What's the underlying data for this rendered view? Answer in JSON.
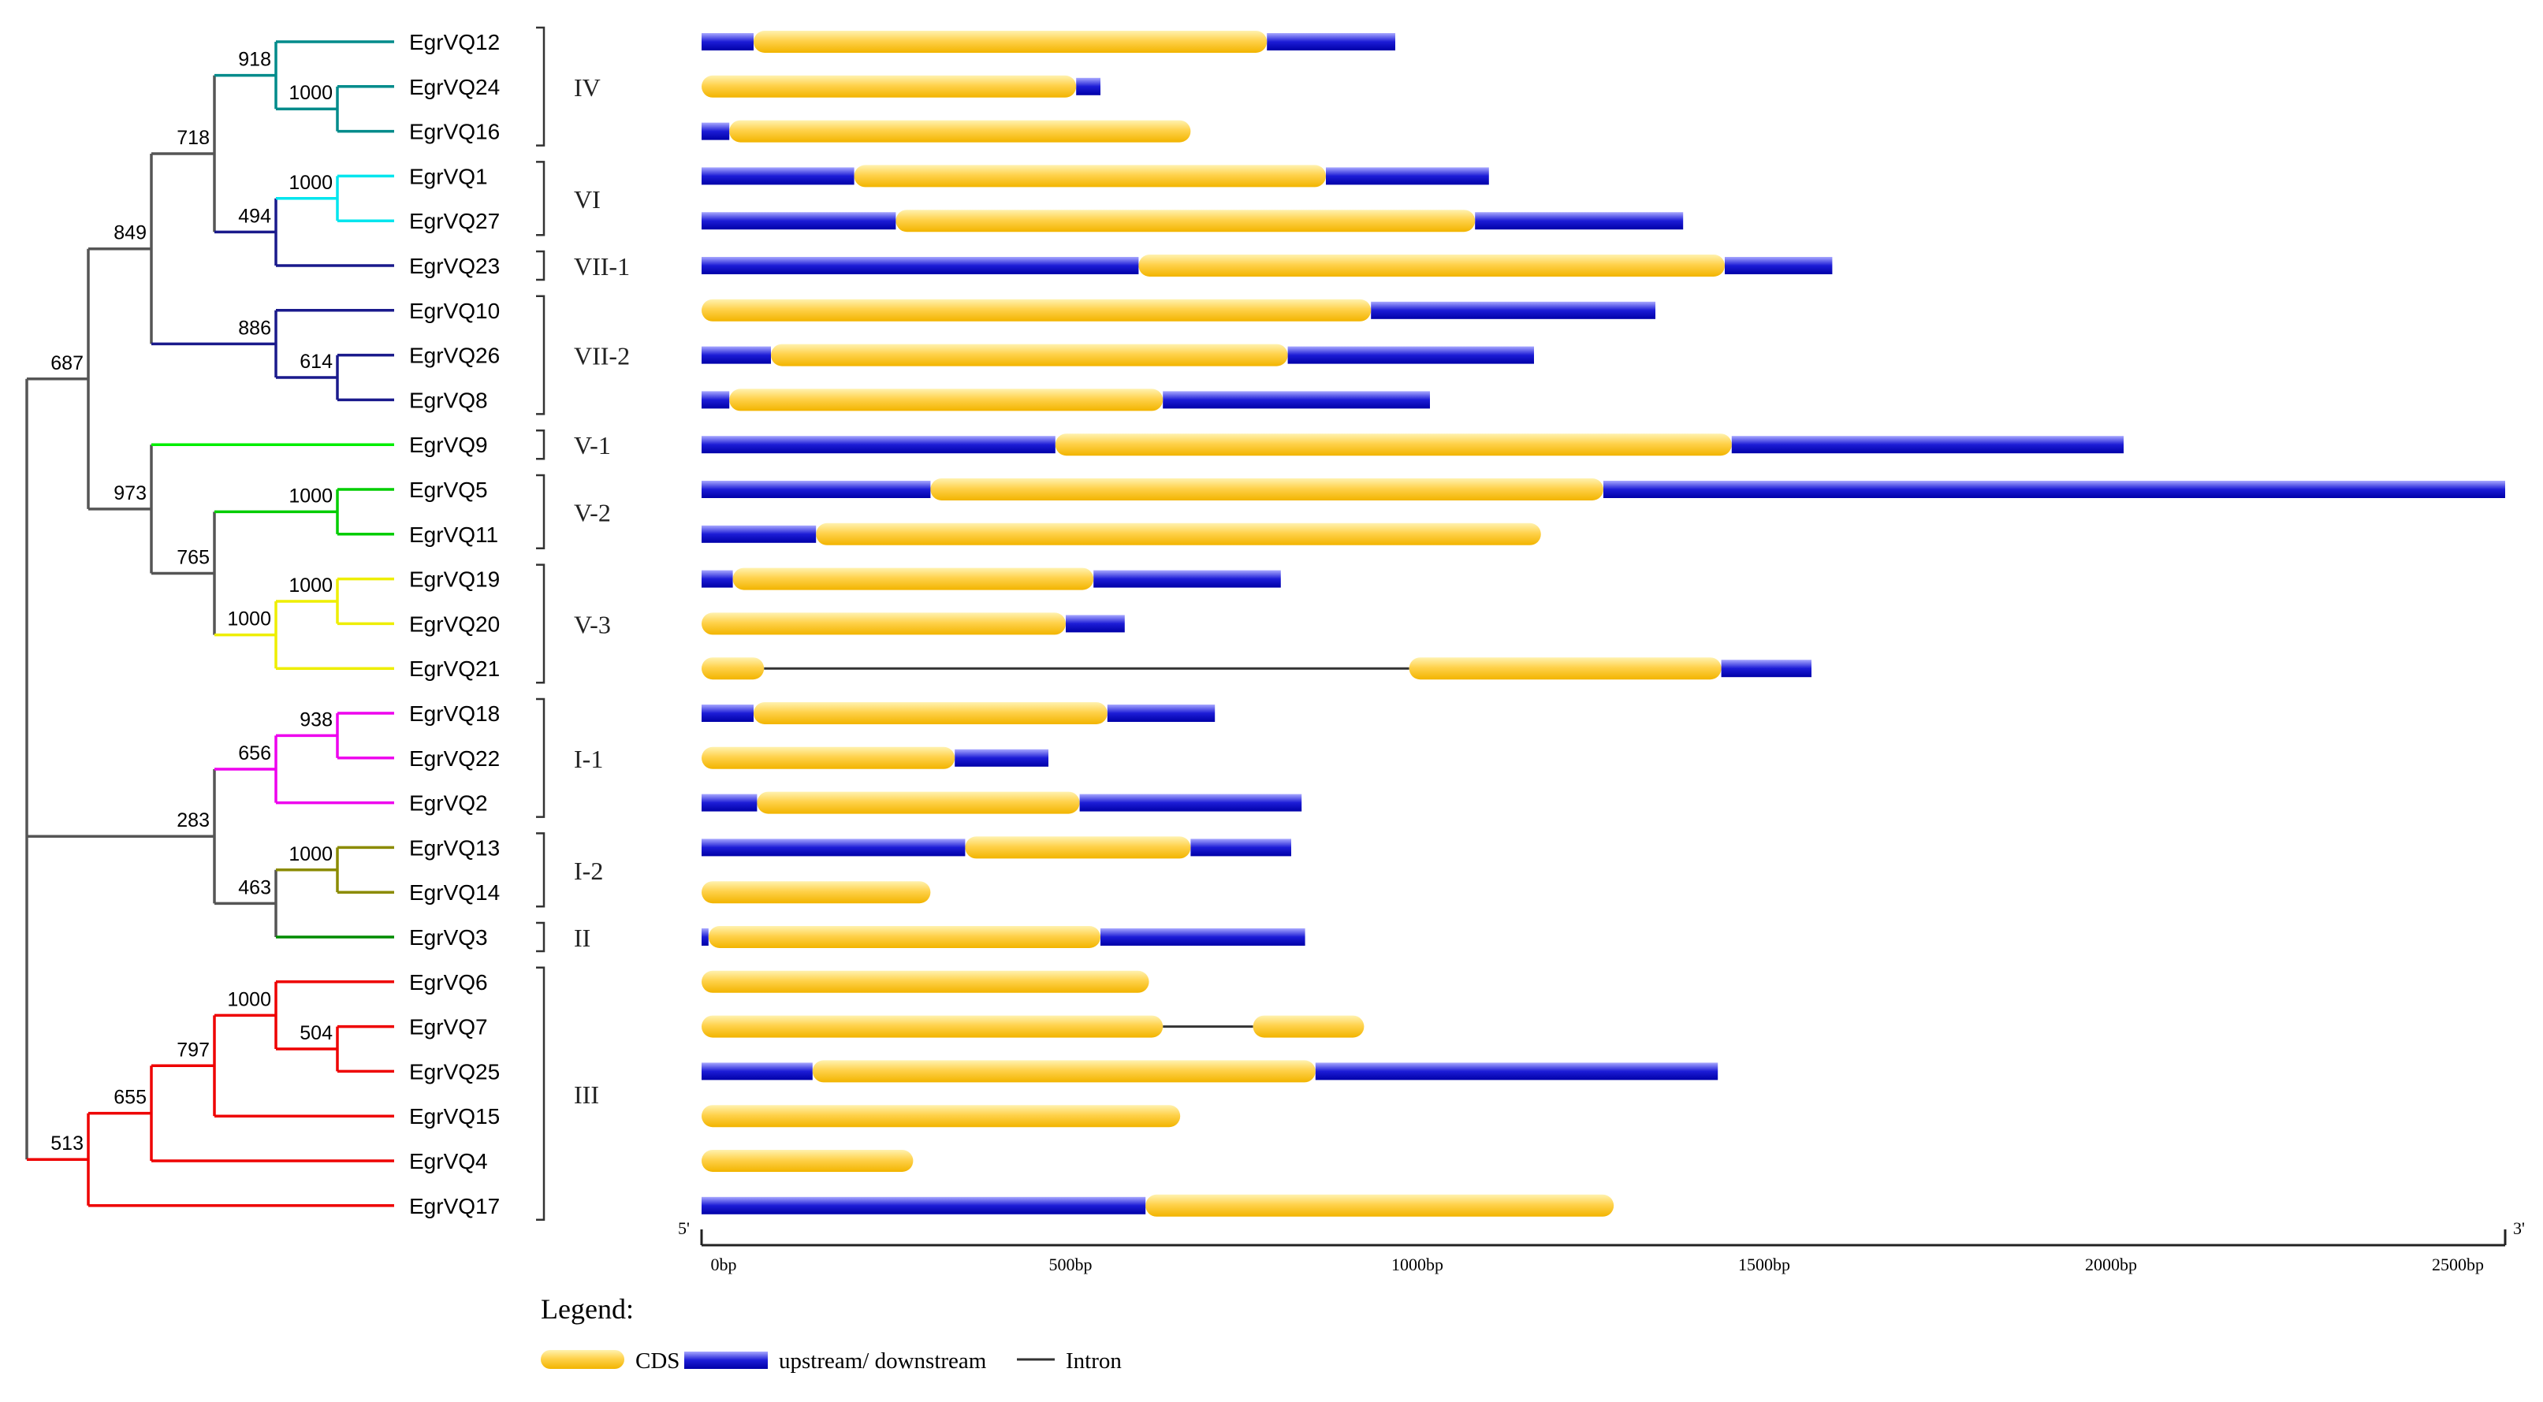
{
  "colors": {
    "cds_light": "#fff2b0",
    "cds_mid": "#ffd24d",
    "cds_dark": "#f2b400",
    "utr_light": "#a8a8ff",
    "utr_mid": "#1c1cd6",
    "utr_dark": "#0000a8",
    "intron": "#333333",
    "axis": "#222222",
    "bracket": "#333333",
    "clade_IV": "#008b8b",
    "clade_VI": "#00e5ee",
    "clade_VII": "#1a1a8c",
    "clade_V1": "#00ee00",
    "clade_V2": "#00cd00",
    "clade_V3": "#eeee00",
    "clade_I1": "#ee00ee",
    "clade_I2": "#8b8b00",
    "clade_II": "#008b00",
    "clade_III": "#ee0000",
    "backbone": "#555555"
  },
  "genes": [
    {
      "name": "EgrVQ12",
      "segments": [
        {
          "t": "utr",
          "s": 0,
          "e": 75
        },
        {
          "t": "cds",
          "s": 75,
          "e": 815
        },
        {
          "t": "utr",
          "s": 815,
          "e": 1000
        }
      ]
    },
    {
      "name": "EgrVQ24",
      "segments": [
        {
          "t": "cds",
          "s": 0,
          "e": 540
        },
        {
          "t": "utr",
          "s": 540,
          "e": 575
        }
      ]
    },
    {
      "name": "EgrVQ16",
      "segments": [
        {
          "t": "utr",
          "s": 0,
          "e": 40
        },
        {
          "t": "cds",
          "s": 40,
          "e": 705
        }
      ]
    },
    {
      "name": "EgrVQ1",
      "segments": [
        {
          "t": "utr",
          "s": 0,
          "e": 220
        },
        {
          "t": "cds",
          "s": 220,
          "e": 900
        },
        {
          "t": "utr",
          "s": 900,
          "e": 1135
        }
      ]
    },
    {
      "name": "EgrVQ27",
      "segments": [
        {
          "t": "utr",
          "s": 0,
          "e": 280
        },
        {
          "t": "cds",
          "s": 280,
          "e": 1115
        },
        {
          "t": "utr",
          "s": 1115,
          "e": 1415
        }
      ]
    },
    {
      "name": "EgrVQ23",
      "segments": [
        {
          "t": "utr",
          "s": 0,
          "e": 630
        },
        {
          "t": "cds",
          "s": 630,
          "e": 1475
        },
        {
          "t": "utr",
          "s": 1475,
          "e": 1630
        }
      ]
    },
    {
      "name": "EgrVQ10",
      "segments": [
        {
          "t": "cds",
          "s": 0,
          "e": 965
        },
        {
          "t": "utr",
          "s": 965,
          "e": 1375
        }
      ]
    },
    {
      "name": "EgrVQ26",
      "segments": [
        {
          "t": "utr",
          "s": 0,
          "e": 100
        },
        {
          "t": "cds",
          "s": 100,
          "e": 845
        },
        {
          "t": "utr",
          "s": 845,
          "e": 1200
        }
      ]
    },
    {
      "name": "EgrVQ8",
      "segments": [
        {
          "t": "utr",
          "s": 0,
          "e": 40
        },
        {
          "t": "cds",
          "s": 40,
          "e": 665
        },
        {
          "t": "utr",
          "s": 665,
          "e": 1050
        }
      ]
    },
    {
      "name": "EgrVQ9",
      "segments": [
        {
          "t": "utr",
          "s": 0,
          "e": 510
        },
        {
          "t": "cds",
          "s": 510,
          "e": 1485
        },
        {
          "t": "utr",
          "s": 1485,
          "e": 2050
        }
      ]
    },
    {
      "name": "EgrVQ5",
      "segments": [
        {
          "t": "utr",
          "s": 0,
          "e": 330
        },
        {
          "t": "cds",
          "s": 330,
          "e": 1300
        },
        {
          "t": "utr",
          "s": 1300,
          "e": 2600
        }
      ]
    },
    {
      "name": "EgrVQ11",
      "segments": [
        {
          "t": "utr",
          "s": 0,
          "e": 165
        },
        {
          "t": "cds",
          "s": 165,
          "e": 1210
        }
      ]
    },
    {
      "name": "EgrVQ19",
      "segments": [
        {
          "t": "utr",
          "s": 0,
          "e": 45
        },
        {
          "t": "cds",
          "s": 45,
          "e": 565
        },
        {
          "t": "utr",
          "s": 565,
          "e": 835
        }
      ]
    },
    {
      "name": "EgrVQ20",
      "segments": [
        {
          "t": "cds",
          "s": 0,
          "e": 525
        },
        {
          "t": "utr",
          "s": 525,
          "e": 610
        }
      ]
    },
    {
      "name": "EgrVQ21",
      "segments": [
        {
          "t": "cds",
          "s": 0,
          "e": 90
        },
        {
          "t": "intron",
          "s": 90,
          "e": 1020
        },
        {
          "t": "cds",
          "s": 1020,
          "e": 1470
        },
        {
          "t": "utr",
          "s": 1470,
          "e": 1600
        }
      ]
    },
    {
      "name": "EgrVQ18",
      "segments": [
        {
          "t": "utr",
          "s": 0,
          "e": 75
        },
        {
          "t": "cds",
          "s": 75,
          "e": 585
        },
        {
          "t": "utr",
          "s": 585,
          "e": 740
        }
      ]
    },
    {
      "name": "EgrVQ22",
      "segments": [
        {
          "t": "cds",
          "s": 0,
          "e": 365
        },
        {
          "t": "utr",
          "s": 365,
          "e": 500
        }
      ]
    },
    {
      "name": "EgrVQ2",
      "segments": [
        {
          "t": "utr",
          "s": 0,
          "e": 80
        },
        {
          "t": "cds",
          "s": 80,
          "e": 545
        },
        {
          "t": "utr",
          "s": 545,
          "e": 865
        }
      ]
    },
    {
      "name": "EgrVQ13",
      "segments": [
        {
          "t": "utr",
          "s": 0,
          "e": 380
        },
        {
          "t": "cds",
          "s": 380,
          "e": 705
        },
        {
          "t": "utr",
          "s": 705,
          "e": 850
        }
      ]
    },
    {
      "name": "EgrVQ14",
      "segments": [
        {
          "t": "cds",
          "s": 0,
          "e": 330
        }
      ]
    },
    {
      "name": "EgrVQ3",
      "segments": [
        {
          "t": "utr",
          "s": 0,
          "e": 10
        },
        {
          "t": "cds",
          "s": 10,
          "e": 575
        },
        {
          "t": "utr",
          "s": 575,
          "e": 870
        }
      ]
    },
    {
      "name": "EgrVQ6",
      "segments": [
        {
          "t": "cds",
          "s": 0,
          "e": 645
        }
      ]
    },
    {
      "name": "EgrVQ7",
      "segments": [
        {
          "t": "cds",
          "s": 0,
          "e": 665
        },
        {
          "t": "intron",
          "s": 665,
          "e": 795
        },
        {
          "t": "cds",
          "s": 795,
          "e": 955
        }
      ]
    },
    {
      "name": "EgrVQ25",
      "segments": [
        {
          "t": "utr",
          "s": 0,
          "e": 160
        },
        {
          "t": "cds",
          "s": 160,
          "e": 885
        },
        {
          "t": "utr",
          "s": 885,
          "e": 1465
        }
      ]
    },
    {
      "name": "EgrVQ15",
      "segments": [
        {
          "t": "cds",
          "s": 0,
          "e": 690
        }
      ]
    },
    {
      "name": "EgrVQ4",
      "segments": [
        {
          "t": "cds",
          "s": 0,
          "e": 305
        }
      ]
    },
    {
      "name": "EgrVQ17",
      "segments": [
        {
          "t": "utr",
          "s": 0,
          "e": 640
        },
        {
          "t": "cds",
          "s": 640,
          "e": 1315
        }
      ]
    }
  ],
  "tree": {
    "nodes": [
      {
        "id": "n12_24_16",
        "depth": 4,
        "children": [
          "EgrVQ12",
          "n24_16"
        ],
        "bootstrap": "918",
        "color": "clade_IV"
      },
      {
        "id": "n24_16",
        "depth": 5,
        "children": [
          "EgrVQ24",
          "EgrVQ16"
        ],
        "bootstrap": "1000",
        "color": "clade_IV"
      },
      {
        "id": "n1_27",
        "depth": 5,
        "children": [
          "EgrVQ1",
          "EgrVQ27"
        ],
        "bootstrap": "1000",
        "color": "clade_VI"
      },
      {
        "id": "n1_27_23",
        "depth": 4,
        "children": [
          "n1_27",
          "EgrVQ23"
        ],
        "bootstrap": "494",
        "color": "clade_VII"
      },
      {
        "id": "nIV_VI",
        "depth": 3,
        "children": [
          "n12_24_16",
          "n1_27_23"
        ],
        "bootstrap": "718",
        "color": "backbone"
      },
      {
        "id": "n26_8",
        "depth": 5,
        "children": [
          "EgrVQ26",
          "EgrVQ8"
        ],
        "bootstrap": "614",
        "color": "clade_VII"
      },
      {
        "id": "n10_26_8",
        "depth": 4,
        "children": [
          "EgrVQ10",
          "n26_8"
        ],
        "bootstrap": "886",
        "color": "clade_VII"
      },
      {
        "id": "nTop",
        "depth": 2,
        "children": [
          "nIV_VI",
          "n10_26_8"
        ],
        "bootstrap": "849",
        "color": "backbone"
      },
      {
        "id": "n5_11",
        "depth": 5,
        "children": [
          "EgrVQ5",
          "EgrVQ11"
        ],
        "bootstrap": "1000",
        "color": "clade_V2"
      },
      {
        "id": "n19_20",
        "depth": 5,
        "children": [
          "EgrVQ19",
          "EgrVQ20"
        ],
        "bootstrap": "1000",
        "color": "clade_V3"
      },
      {
        "id": "nV3",
        "depth": 4,
        "children": [
          "n19_20",
          "EgrVQ21"
        ],
        "bootstrap": "1000",
        "color": "clade_V3"
      },
      {
        "id": "nV23",
        "depth": 3,
        "children": [
          "n5_11",
          "nV3"
        ],
        "bootstrap": "765",
        "color": "backbone"
      },
      {
        "id": "nV",
        "depth": 2,
        "children": [
          "EgrVQ9",
          "nV23"
        ],
        "bootstrap": "973",
        "color": "backbone"
      },
      {
        "id": "nUpper",
        "depth": 1,
        "children": [
          "nTop",
          "nV"
        ],
        "bootstrap": "687",
        "color": "backbone"
      },
      {
        "id": "n18_22",
        "depth": 5,
        "children": [
          "EgrVQ18",
          "EgrVQ22"
        ],
        "bootstrap": "938",
        "color": "clade_I1"
      },
      {
        "id": "nI1",
        "depth": 4,
        "children": [
          "n18_22",
          "EgrVQ2"
        ],
        "bootstrap": "656",
        "color": "clade_I1"
      },
      {
        "id": "n13_14",
        "depth": 5,
        "children": [
          "EgrVQ13",
          "EgrVQ14"
        ],
        "bootstrap": "1000",
        "color": "clade_I2"
      },
      {
        "id": "nI2_II",
        "depth": 4,
        "children": [
          "n13_14",
          "EgrVQ3"
        ],
        "bootstrap": "463",
        "color": "backbone"
      },
      {
        "id": "nI_II",
        "depth": 3,
        "children": [
          "nI1",
          "nI2_II"
        ],
        "bootstrap": "283",
        "color": "backbone"
      },
      {
        "id": "n7_25",
        "depth": 5,
        "children": [
          "EgrVQ7",
          "EgrVQ25"
        ],
        "bootstrap": "504",
        "color": "clade_III"
      },
      {
        "id": "n6_7_25",
        "depth": 4,
        "children": [
          "EgrVQ6",
          "n7_25"
        ],
        "bootstrap": "1000",
        "color": "clade_III"
      },
      {
        "id": "nIII_a",
        "depth": 3,
        "children": [
          "n6_7_25",
          "EgrVQ15"
        ],
        "bootstrap": "797",
        "color": "clade_III"
      },
      {
        "id": "nIII_b",
        "depth": 2,
        "children": [
          "nIII_a",
          "EgrVQ4"
        ],
        "bootstrap": "655",
        "color": "clade_III"
      },
      {
        "id": "nIII",
        "depth": 1,
        "children": [
          "nIII_b",
          "EgrVQ17"
        ],
        "bootstrap": "513",
        "color": "clade_III"
      },
      {
        "id": "root",
        "depth": 0,
        "children": [
          "nUpper",
          "nI_II",
          "nIII"
        ],
        "bootstrap": "",
        "color": "backbone"
      }
    ],
    "leaf_colors": {
      "EgrVQ12": "clade_IV",
      "EgrVQ24": "clade_IV",
      "EgrVQ16": "clade_IV",
      "EgrVQ1": "clade_VI",
      "EgrVQ27": "clade_VI",
      "EgrVQ23": "clade_VII",
      "EgrVQ10": "clade_VII",
      "EgrVQ26": "clade_VII",
      "EgrVQ8": "clade_VII",
      "EgrVQ9": "clade_V1",
      "EgrVQ5": "clade_V2",
      "EgrVQ11": "clade_V2",
      "EgrVQ19": "clade_V3",
      "EgrVQ20": "clade_V3",
      "EgrVQ21": "clade_V3",
      "EgrVQ18": "clade_I1",
      "EgrVQ22": "clade_I1",
      "EgrVQ2": "clade_I1",
      "EgrVQ13": "clade_I2",
      "EgrVQ14": "clade_I2",
      "EgrVQ3": "clade_II",
      "EgrVQ6": "clade_III",
      "EgrVQ7": "clade_III",
      "EgrVQ25": "clade_III",
      "EgrVQ15": "clade_III",
      "EgrVQ4": "clade_III",
      "EgrVQ17": "clade_III"
    }
  },
  "groups": [
    {
      "label": "IV",
      "first": 0,
      "last": 2
    },
    {
      "label": "VI",
      "first": 3,
      "last": 4
    },
    {
      "label": "VII-1",
      "first": 5,
      "last": 5
    },
    {
      "label": "VII-2",
      "first": 6,
      "last": 8
    },
    {
      "label": "V-1",
      "first": 9,
      "last": 9
    },
    {
      "label": "V-2",
      "first": 10,
      "last": 11
    },
    {
      "label": "V-3",
      "first": 12,
      "last": 14
    },
    {
      "label": "I-1",
      "first": 15,
      "last": 17
    },
    {
      "label": "I-2",
      "first": 18,
      "last": 19
    },
    {
      "label": "II",
      "first": 20,
      "last": 20
    },
    {
      "label": "III",
      "first": 21,
      "last": 26
    }
  ],
  "axis": {
    "min_bp": 0,
    "max_bp": 2600,
    "ticks": [
      {
        "bp": 0,
        "label": "0bp"
      },
      {
        "bp": 500,
        "label": "500bp"
      },
      {
        "bp": 1000,
        "label": "1000bp"
      },
      {
        "bp": 1500,
        "label": "1500bp"
      },
      {
        "bp": 2000,
        "label": "2000bp"
      },
      {
        "bp": 2500,
        "label": "2500bp"
      }
    ],
    "start_label": "5'",
    "end_label": "3'"
  },
  "legend": {
    "title": "Legend:",
    "cds_label": "CDS",
    "utr_label": "upstream/ downstream",
    "intron_label": "Intron"
  }
}
